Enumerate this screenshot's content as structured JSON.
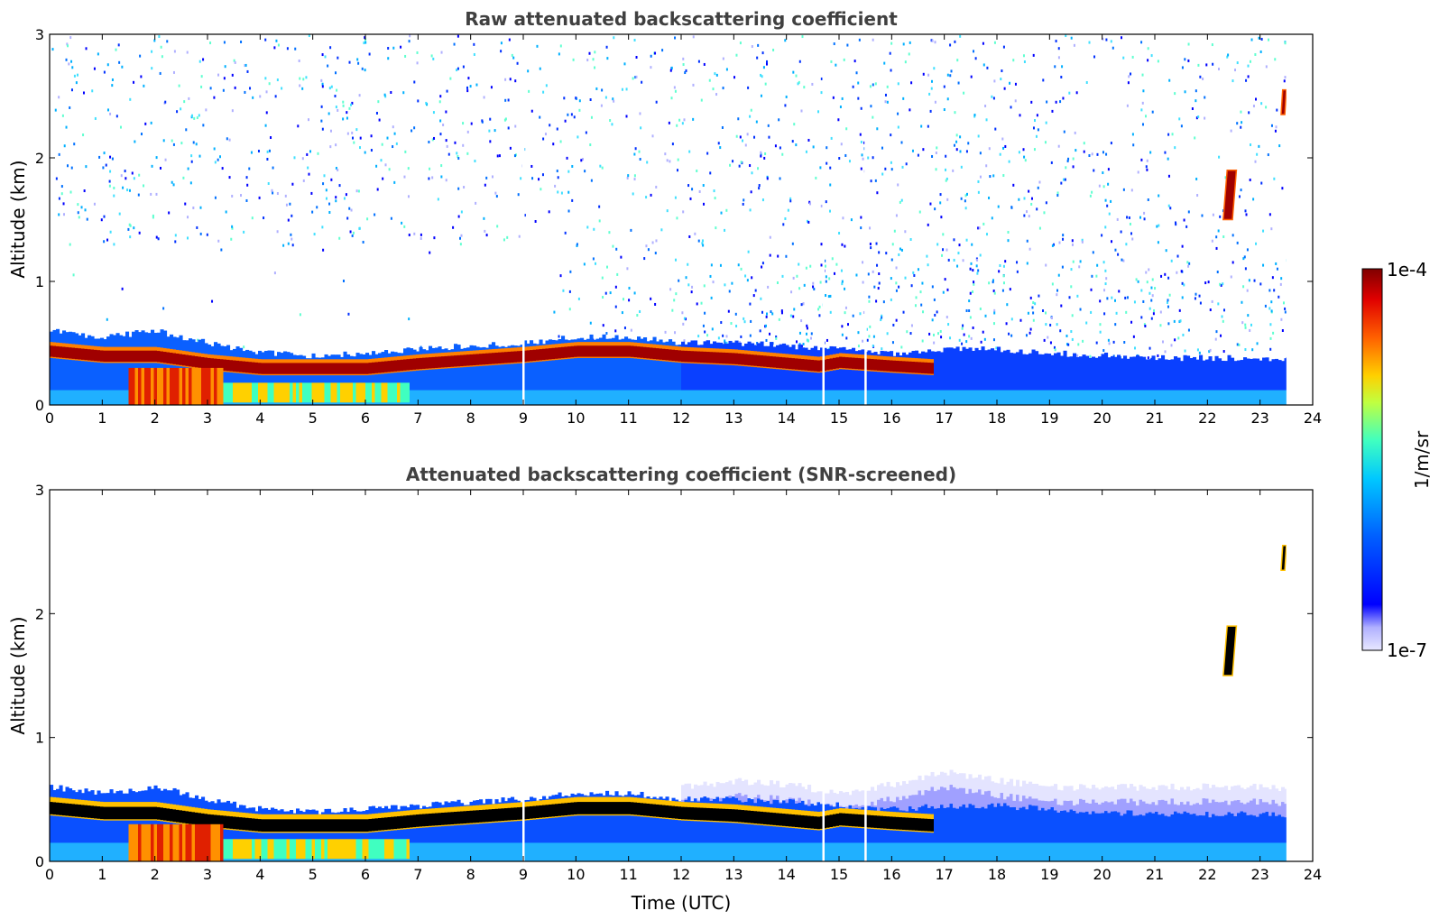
{
  "chart_data": [
    {
      "type": "heatmap",
      "title": "Raw attenuated backscattering coefficient",
      "xlabel": "",
      "ylabel": "Altitude (km)",
      "xlim": [
        0,
        24
      ],
      "ylim": [
        0,
        3
      ],
      "x_ticks": [
        "0",
        "1",
        "2",
        "3",
        "4",
        "5",
        "6",
        "7",
        "8",
        "9",
        "10",
        "11",
        "12",
        "13",
        "14",
        "15",
        "16",
        "17",
        "18",
        "19",
        "20",
        "21",
        "22",
        "23",
        "24"
      ],
      "y_ticks": [
        "0",
        "1",
        "2",
        "3"
      ],
      "data_end_time": 23.5,
      "gaps": [
        9.0,
        14.7,
        15.5
      ],
      "aerosol_layer_top_km": [
        [
          0,
          0.6
        ],
        [
          1,
          0.55
        ],
        [
          2,
          0.6
        ],
        [
          3,
          0.5
        ],
        [
          4,
          0.42
        ],
        [
          5,
          0.4
        ],
        [
          6,
          0.42
        ],
        [
          7,
          0.45
        ],
        [
          8,
          0.48
        ],
        [
          9,
          0.5
        ],
        [
          10,
          0.55
        ],
        [
          11,
          0.55
        ],
        [
          12,
          0.5
        ],
        [
          13,
          0.5
        ],
        [
          14,
          0.48
        ],
        [
          15,
          0.45
        ],
        [
          16,
          0.42
        ],
        [
          17,
          0.45
        ],
        [
          18,
          0.45
        ],
        [
          19,
          0.42
        ],
        [
          20,
          0.4
        ],
        [
          21,
          0.38
        ],
        [
          22,
          0.38
        ],
        [
          23,
          0.38
        ],
        [
          23.5,
          0.38
        ]
      ],
      "strong_layer_km": [
        [
          0,
          0.42
        ],
        [
          1,
          0.38
        ],
        [
          2,
          0.38
        ],
        [
          3,
          0.32
        ],
        [
          4,
          0.28
        ],
        [
          5,
          0.28
        ],
        [
          6,
          0.28
        ],
        [
          7,
          0.32
        ],
        [
          8,
          0.35
        ],
        [
          9,
          0.38
        ],
        [
          10,
          0.42
        ],
        [
          11,
          0.42
        ],
        [
          12,
          0.38
        ],
        [
          13,
          0.36
        ],
        [
          14.6,
          0.3
        ],
        [
          15,
          0.33
        ],
        [
          16,
          0.3
        ],
        [
          16.8,
          0.28
        ]
      ],
      "cloud_features": [
        {
          "t_start": 22.3,
          "t_end": 22.55,
          "alt_low_km": 1.5,
          "alt_high_km": 1.9
        },
        {
          "t_start": 23.4,
          "t_end": 23.5,
          "alt_low_km": 2.35,
          "alt_high_km": 2.55
        }
      ]
    },
    {
      "type": "heatmap",
      "title": "Attenuated backscattering coefficient (SNR-screened)",
      "xlabel": "Time (UTC)",
      "ylabel": "Altitude (km)",
      "xlim": [
        0,
        24
      ],
      "ylim": [
        0,
        3
      ],
      "x_ticks": [
        "0",
        "1",
        "2",
        "3",
        "4",
        "5",
        "6",
        "7",
        "8",
        "9",
        "10",
        "11",
        "12",
        "13",
        "14",
        "15",
        "16",
        "17",
        "18",
        "19",
        "20",
        "21",
        "22",
        "23",
        "24"
      ],
      "y_ticks": [
        "0",
        "1",
        "2",
        "3"
      ],
      "data_end_time": 23.5,
      "gaps": [
        9.0,
        14.7,
        15.5
      ],
      "low_signal_top_km": [
        [
          12,
          0.6
        ],
        [
          13,
          0.65
        ],
        [
          14,
          0.62
        ],
        [
          15,
          0.55
        ],
        [
          16,
          0.62
        ],
        [
          17,
          0.72
        ],
        [
          18,
          0.65
        ],
        [
          19,
          0.6
        ],
        [
          20,
          0.6
        ],
        [
          21,
          0.6
        ],
        [
          22,
          0.6
        ],
        [
          23,
          0.6
        ],
        [
          23.5,
          0.58
        ]
      ],
      "cloud_features": [
        {
          "t_start": 22.3,
          "t_end": 22.55,
          "alt_low_km": 1.5,
          "alt_high_km": 1.9
        },
        {
          "t_start": 23.4,
          "t_end": 23.5,
          "alt_low_km": 2.35,
          "alt_high_km": 2.55
        }
      ]
    }
  ],
  "colorbar": {
    "top_label": "1e-4",
    "bottom_label": "1e-7",
    "unit_label": "1/m/sr",
    "colormap": "jet",
    "colors": [
      "#e8e8ff",
      "#c0c0ff",
      "#0000ff",
      "#0050ff",
      "#00c0ff",
      "#40ffc0",
      "#c0ff40",
      "#ffd000",
      "#ff6000",
      "#e00000",
      "#800000"
    ]
  }
}
